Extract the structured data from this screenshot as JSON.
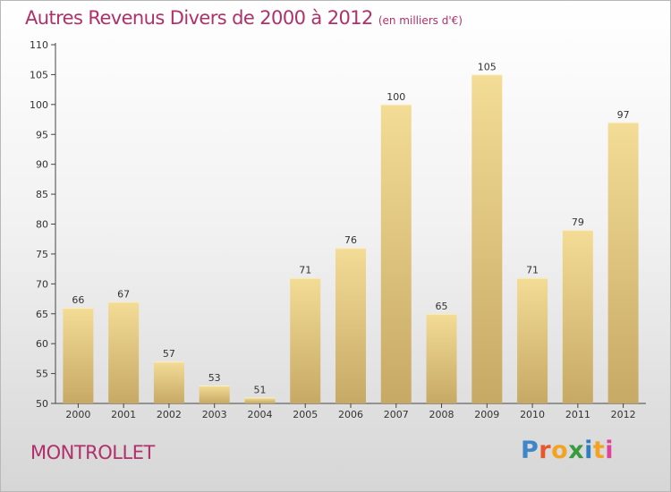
{
  "header": {
    "title": "Autres Revenus Divers de 2000 à 2012",
    "unit": "(en milliers d'€)"
  },
  "footer": {
    "town": "MONTROLLET",
    "logo_letters": [
      "P",
      "r",
      "o",
      "x",
      "i",
      "t",
      "i"
    ]
  },
  "colors": {
    "title": "#b0306a",
    "bar_light": "#f3dc96",
    "bar_dark": "#c6a965"
  },
  "chart_data": {
    "type": "bar",
    "title": "Autres Revenus Divers de 2000 à 2012",
    "subtitle": "(en milliers d'€)",
    "categories": [
      "2000",
      "2001",
      "2002",
      "2003",
      "2004",
      "2005",
      "2006",
      "2007",
      "2008",
      "2009",
      "2010",
      "2011",
      "2012"
    ],
    "values": [
      66,
      67,
      57,
      53,
      51,
      71,
      76,
      100,
      65,
      105,
      71,
      79,
      97
    ],
    "ylim": [
      50,
      110
    ],
    "yticks": [
      50,
      55,
      60,
      65,
      70,
      75,
      80,
      85,
      90,
      95,
      100,
      105,
      110
    ],
    "grid": false,
    "legend": "none"
  }
}
